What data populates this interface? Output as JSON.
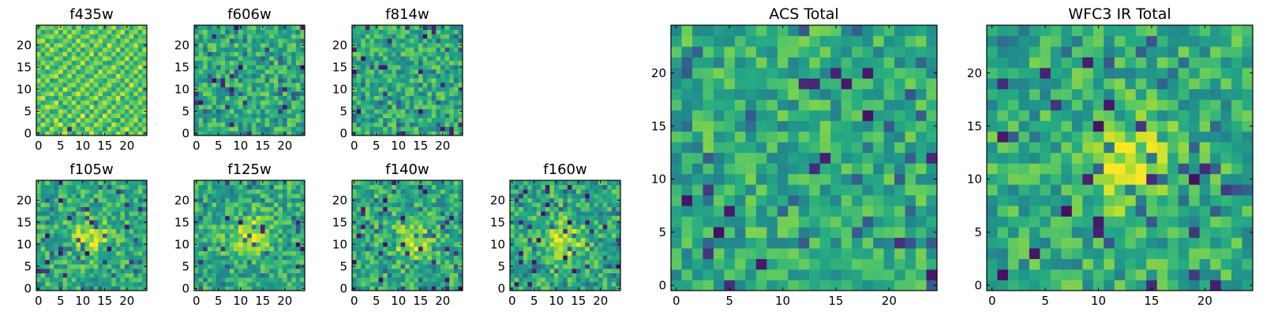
{
  "chart_data": [
    {
      "type": "heatmap",
      "title": "f435w",
      "grid_size": 25,
      "x_ticks": [
        0,
        5,
        10,
        15,
        20
      ],
      "y_ticks": [
        0,
        5,
        10,
        15,
        20
      ],
      "xlim": [
        -0.5,
        24.5
      ],
      "ylim": [
        -0.5,
        24.5
      ],
      "colormap": "viridis",
      "values_note": "pixel noise field",
      "values": [
        [
          0.71,
          0.58,
          0.88,
          0.74,
          0.52,
          0.79,
          0.93,
          0.67,
          0.49,
          0.81,
          0.76,
          0.62,
          0.95,
          0.7,
          0.55,
          0.85,
          0.72,
          0.6,
          0.89,
          0.77,
          0.51,
          0.83,
          0.69,
          0.92,
          0.64
        ],
        [
          0.82,
          0.66,
          0.54,
          0.9,
          0.75,
          0.61,
          0.86,
          0.12,
          0.78,
          0.69,
          0.57,
          0.93,
          0.8,
          0.65,
          0.74,
          0.5,
          0.88,
          0.71,
          0.59,
          0.84,
          0.96,
          0.63,
          0.77,
          0.56,
          0.87
        ],
        [
          0.6,
          0.91,
          0.73,
          0.57,
          0.83,
          0.97,
          0.64,
          0.76,
          0.88,
          0.53,
          0.81,
          0.7,
          0.62,
          0.9,
          0.79,
          0.66,
          0.55,
          0.94,
          0.75,
          0.61,
          0.72,
          0.85,
          0.58,
          0.8,
          0.68
        ],
        [
          0.77,
          0.52,
          0.85,
          0.68,
          0.94,
          0.59,
          0.74,
          0.63,
          0.55,
          0.92,
          0.67,
          0.84,
          0.76,
          0.58,
          0.89,
          0.73,
          0.81,
          0.62,
          0.5,
          0.87,
          0.65,
          0.78,
          0.91,
          0.54,
          0.83
        ],
        [
          0.64,
          0.87,
          0.6,
          0.79,
          0.71,
          0.83,
          0.56,
          0.9,
          0.72,
          0.65,
          0.98,
          0.53,
          0.88,
          0.74,
          0.61,
          0.95,
          0.68,
          0.79,
          0.86,
          0.58,
          0.73,
          0.6,
          0.82,
          0.7,
          0.57
        ],
        [
          0.89,
          0.7,
          0.77,
          0.55,
          0.62,
          0.91,
          0.8,
          0.58,
          0.84,
          0.75,
          0.63,
          0.79,
          0.57,
          0.86,
          0.7,
          0.54,
          0.92,
          0.65,
          0.73,
          0.8,
          0.59,
          0.88,
          0.66,
          0.75,
          0.93
        ],
        [
          0.56,
          0.78,
          0.93,
          0.86,
          0.8,
          0.67,
          0.51,
          0.73,
          0.65,
          0.89,
          0.72,
          0.6,
          0.94,
          0.66,
          0.83,
          0.77,
          0.59,
          0.87,
          0.62,
          0.71,
          0.9,
          0.55,
          0.8,
          0.63,
          0.72
        ],
        [
          0.73,
          0.61,
          0.67,
          0.72,
          0.95,
          0.54,
          0.85,
          0.69,
          0.91,
          0.58,
          0.8,
          0.87,
          0.7,
          0.52,
          0.76,
          0.9,
          0.74,
          0.57,
          0.83,
          0.68,
          0.61,
          0.79,
          0.71,
          0.88,
          0.6
        ],
        [
          0.85,
          0.94,
          0.58,
          0.64,
          0.53,
          0.78,
          0.7,
          0.86,
          0.61,
          0.74,
          0.55,
          0.67,
          0.81,
          0.93,
          0.63,
          0.69,
          0.85,
          0.72,
          0.96,
          0.54,
          0.8,
          0.66,
          0.57,
          0.77,
          0.84
        ],
        [
          0.62,
          0.75,
          0.82,
          0.91,
          0.69,
          0.88,
          0.63,
          0.57,
          0.79,
          0.96,
          0.71,
          0.84,
          0.58,
          0.75,
          0.9,
          0.62,
          0.56,
          0.81,
          0.69,
          0.92,
          0.74,
          0.59,
          0.86,
          0.65,
          0.7
        ],
        [
          0.79,
          0.57,
          0.71,
          0.59,
          0.86,
          0.6,
          0.97,
          0.74,
          0.52,
          0.68,
          0.89,
          0.64,
          0.77,
          0.6,
          0.82,
          0.87,
          0.7,
          0.53,
          0.78,
          0.63,
          0.85,
          0.72,
          0.61,
          0.9,
          0.55
        ],
        [
          0.68,
          0.83,
          0.63,
          0.77,
          0.74,
          0.72,
          0.55,
          0.82,
          0.87,
          0.62,
          0.76,
          0.93,
          0.66,
          0.84,
          0.57,
          0.73,
          0.91,
          0.67,
          0.59,
          0.8,
          0.54,
          0.95,
          0.74,
          0.58,
          0.81
        ],
        [
          0.9,
          0.65,
          0.89,
          0.53,
          0.61,
          0.84,
          0.76,
          0.64,
          0.7,
          0.85,
          0.58,
          0.72,
          0.9,
          0.71,
          0.68,
          0.55,
          0.79,
          0.86,
          0.74,
          0.6,
          0.88,
          0.63,
          0.82,
          0.69,
          0.76
        ],
        [
          0.58,
          0.8,
          0.74,
          0.85,
          0.92,
          0.57,
          0.69,
          0.91,
          0.6,
          0.77,
          0.83,
          0.56,
          0.62,
          0.88,
          0.75,
          0.82,
          0.64,
          0.58,
          0.93,
          0.73,
          0.67,
          0.8,
          0.55,
          0.84,
          0.62
        ],
        [
          0.74,
          0.69,
          0.56,
          0.7,
          0.78,
          0.93,
          0.62,
          0.75,
          0.85,
          0.54,
          0.66,
          0.8,
          0.74,
          0.59,
          0.92,
          0.68,
          0.87,
          0.76,
          0.63,
          0.82,
          0.57,
          0.71,
          0.89,
          0.6,
          0.79
        ],
        [
          0.83,
          0.59,
          0.92,
          0.66,
          0.57,
          0.76,
          0.88,
          0.53,
          0.73,
          0.9,
          0.61,
          0.75,
          0.85,
          0.67,
          0.56,
          0.79,
          0.72,
          0.93,
          0.7,
          0.55,
          0.84,
          0.64,
          0.73,
          0.97,
          0.66
        ],
        [
          0.61,
          0.86,
          0.7,
          0.81,
          0.69,
          0.63,
          0.78,
          0.84,
          0.56,
          0.67,
          0.95,
          0.58,
          0.71,
          0.83,
          0.78,
          0.6,
          0.54,
          0.66,
          0.81,
          0.89,
          0.62,
          0.77,
          0.58,
          0.71,
          0.85
        ],
        [
          0.76,
          0.72,
          0.61,
          0.58,
          0.88,
          0.8,
          0.54,
          0.68,
          0.92,
          0.79,
          0.7,
          0.87,
          0.6,
          0.76,
          0.65,
          0.91,
          0.83,
          0.57,
          0.75,
          0.64,
          0.93,
          0.52,
          0.86,
          0.67,
          0.59
        ],
        [
          0.88,
          0.54,
          0.84,
          0.75,
          0.63,
          0.71,
          0.91,
          0.6,
          0.77,
          0.58,
          0.82,
          0.65,
          0.94,
          0.55,
          0.87,
          0.72,
          0.61,
          0.85,
          0.58,
          0.78,
          0.7,
          0.88,
          0.63,
          0.8,
          0.74
        ],
        [
          0.57,
          0.79,
          0.66,
          0.93,
          0.76,
          0.55,
          0.67,
          0.89,
          0.63,
          0.84,
          0.54,
          0.73,
          0.8,
          0.69,
          0.6,
          0.86,
          0.77,
          0.64,
          0.92,
          0.53,
          0.81,
          0.68,
          0.76,
          0.57,
          0.9
        ],
        [
          0.72,
          0.63,
          0.9,
          0.6,
          0.84,
          0.89,
          0.73,
          0.57,
          0.82,
          0.66,
          0.91,
          0.78,
          0.56,
          0.88,
          0.74,
          0.58,
          0.95,
          0.71,
          0.67,
          0.83,
          0.6,
          0.74,
          0.92,
          0.65,
          0.61
        ],
        [
          0.86,
          0.91,
          0.57,
          0.72,
          0.55,
          0.66,
          0.82,
          0.76,
          0.59,
          0.94,
          0.69,
          0.61,
          0.83,
          0.73,
          0.9,
          0.65,
          0.68,
          0.8,
          0.55,
          0.76,
          0.88,
          0.63,
          0.7,
          0.82,
          0.77
        ],
        [
          0.65,
          0.74,
          0.81,
          0.87,
          0.73,
          0.79,
          0.6,
          0.93,
          0.71,
          0.62,
          0.8,
          0.86,
          0.67,
          0.58,
          0.79,
          0.84,
          0.57,
          0.73,
          0.89,
          0.62,
          0.71,
          0.9,
          0.56,
          0.74,
          0.68
        ],
        [
          0.8,
          0.56,
          0.69,
          0.63,
          0.9,
          0.58,
          0.87,
          0.65,
          0.88,
          0.75,
          0.57,
          0.7,
          0.92,
          0.81,
          0.63,
          0.71,
          0.86,
          0.6,
          0.78,
          0.94,
          0.55,
          0.79,
          0.84,
          0.61,
          0.87
        ],
        [
          0.69,
          0.84,
          0.75,
          0.79,
          0.67,
          0.92,
          0.71,
          0.8,
          0.54,
          0.87,
          0.74,
          0.59,
          0.69,
          0.64,
          0.85,
          0.56,
          0.76,
          0.91,
          0.62,
          0.7,
          0.83,
          0.58,
          0.73,
          0.89,
          0.72
        ]
      ]
    },
    {
      "type": "heatmap",
      "title": "f606w",
      "grid_size": 25,
      "x_ticks": [
        0,
        5,
        10,
        15,
        20
      ],
      "y_ticks": [
        0,
        5,
        10,
        15,
        20
      ],
      "xlim": [
        -0.5,
        24.5
      ],
      "ylim": [
        -0.5,
        24.5
      ],
      "colormap": "viridis",
      "seed": 2
    },
    {
      "type": "heatmap",
      "title": "f814w",
      "grid_size": 25,
      "x_ticks": [
        0,
        5,
        10,
        15,
        20
      ],
      "y_ticks": [
        0,
        5,
        10,
        15,
        20
      ],
      "xlim": [
        -0.5,
        24.5
      ],
      "ylim": [
        -0.5,
        24.5
      ],
      "colormap": "viridis",
      "seed": 3
    },
    {
      "type": "heatmap",
      "title": "f105w",
      "grid_size": 25,
      "x_ticks": [
        0,
        5,
        10,
        15,
        20
      ],
      "y_ticks": [
        0,
        5,
        10,
        15,
        20
      ],
      "xlim": [
        -0.5,
        24.5
      ],
      "ylim": [
        -0.5,
        24.5
      ],
      "colormap": "viridis",
      "seed": 4,
      "source_center": [
        12,
        12
      ]
    },
    {
      "type": "heatmap",
      "title": "f125w",
      "grid_size": 25,
      "x_ticks": [
        0,
        5,
        10,
        15,
        20
      ],
      "y_ticks": [
        0,
        5,
        10,
        15,
        20
      ],
      "xlim": [
        -0.5,
        24.5
      ],
      "ylim": [
        -0.5,
        24.5
      ],
      "colormap": "viridis",
      "seed": 5,
      "source_center": [
        12,
        12
      ]
    },
    {
      "type": "heatmap",
      "title": "f140w",
      "grid_size": 25,
      "x_ticks": [
        0,
        5,
        10,
        15,
        20
      ],
      "y_ticks": [
        0,
        5,
        10,
        15,
        20
      ],
      "xlim": [
        -0.5,
        24.5
      ],
      "ylim": [
        -0.5,
        24.5
      ],
      "colormap": "viridis",
      "seed": 6,
      "source_center": [
        13,
        11
      ]
    },
    {
      "type": "heatmap",
      "title": "f160w",
      "grid_size": 25,
      "x_ticks": [
        0,
        5,
        10,
        15,
        20
      ],
      "y_ticks": [
        0,
        5,
        10,
        15,
        20
      ],
      "xlim": [
        -0.5,
        24.5
      ],
      "ylim": [
        -0.5,
        24.5
      ],
      "colormap": "viridis",
      "seed": 7,
      "source_center": [
        12,
        11
      ]
    },
    {
      "type": "heatmap",
      "title": "ACS Total",
      "grid_size": 25,
      "x_ticks": [
        0,
        5,
        10,
        15,
        20
      ],
      "y_ticks": [
        0,
        5,
        10,
        15,
        20
      ],
      "xlim": [
        -0.5,
        24.5
      ],
      "ylim": [
        -0.5,
        24.5
      ],
      "colormap": "viridis",
      "seed": 8
    },
    {
      "type": "heatmap",
      "title": "WFC3 IR Total",
      "grid_size": 25,
      "x_ticks": [
        0,
        5,
        10,
        15,
        20
      ],
      "y_ticks": [
        0,
        5,
        10,
        15,
        20
      ],
      "xlim": [
        -0.5,
        24.5
      ],
      "ylim": [
        -0.5,
        24.5
      ],
      "colormap": "viridis",
      "seed": 9,
      "source_center": [
        13,
        11
      ]
    }
  ],
  "colors": {
    "viridis_dark": "#440154",
    "viridis_mid": "#21918c",
    "viridis_light": "#5ec962",
    "viridis_bright": "#fde725",
    "axis": "#000000"
  }
}
